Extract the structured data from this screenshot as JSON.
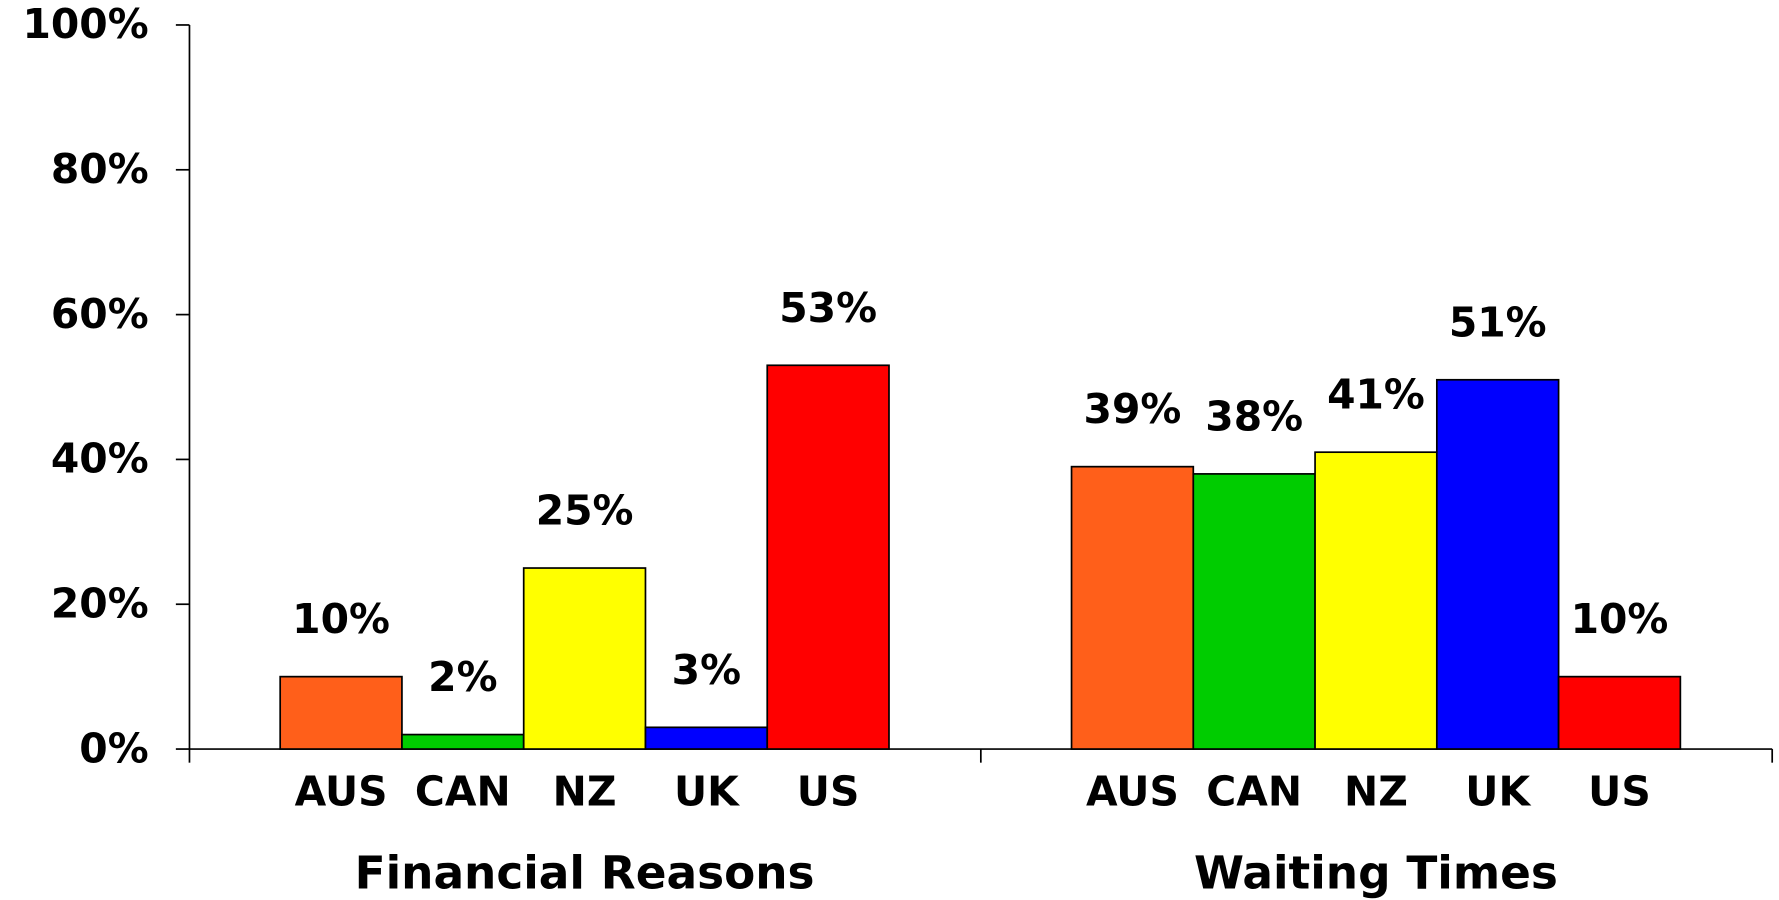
{
  "chart_data": {
    "type": "bar",
    "categories": [
      "Financial Reasons",
      "Waiting Times"
    ],
    "series": [
      {
        "name": "AUS",
        "color": "#ff5f1a",
        "values": [
          10,
          39
        ],
        "value_labels": [
          "10%",
          "39%"
        ]
      },
      {
        "name": "CAN",
        "color": "#00cc00",
        "values": [
          2,
          38
        ],
        "value_labels": [
          "2%",
          "38%"
        ]
      },
      {
        "name": "NZ",
        "color": "#ffff00",
        "values": [
          25,
          41
        ],
        "value_labels": [
          "25%",
          "41%"
        ]
      },
      {
        "name": "UK",
        "color": "#0000ff",
        "values": [
          3,
          51
        ],
        "value_labels": [
          "3%",
          "51%"
        ]
      },
      {
        "name": "US",
        "color": "#ff0000",
        "values": [
          53,
          10
        ],
        "value_labels": [
          "53%",
          "10%"
        ]
      }
    ],
    "ylim": [
      0,
      100
    ],
    "yticks": [
      {
        "value": 0,
        "label": "0%"
      },
      {
        "value": 20,
        "label": "20%"
      },
      {
        "value": 40,
        "label": "40%"
      },
      {
        "value": 60,
        "label": "60%"
      },
      {
        "value": 80,
        "label": "80%"
      },
      {
        "value": 100,
        "label": "100%"
      }
    ],
    "grid": false
  }
}
